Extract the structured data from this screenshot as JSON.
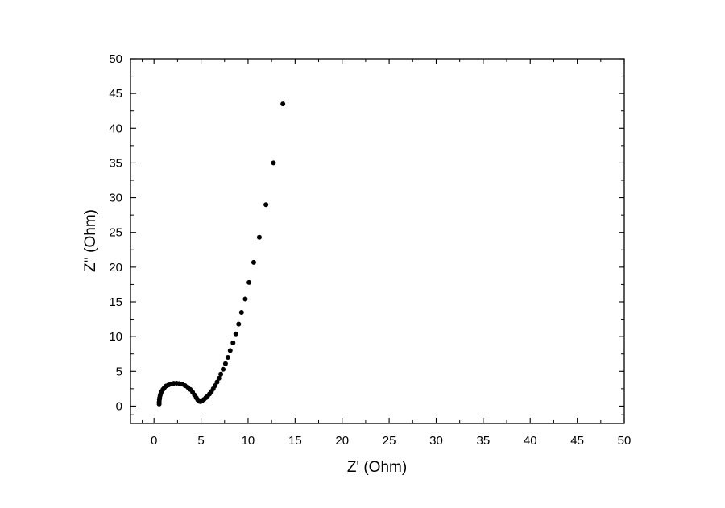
{
  "chart_data": {
    "type": "scatter",
    "title": "",
    "xlabel": "Z' (Ohm)",
    "ylabel": "Z'' (Ohm)",
    "xlim": [
      -2.5,
      50
    ],
    "ylim": [
      -2.5,
      50
    ],
    "xticks": [
      0,
      5,
      10,
      15,
      20,
      25,
      30,
      35,
      40,
      45,
      50
    ],
    "yticks": [
      0,
      5,
      10,
      15,
      20,
      25,
      30,
      35,
      40,
      45,
      50
    ],
    "grid": false,
    "legend": "none",
    "marker_color": "#000000",
    "series": [
      {
        "values": [
          [
            0.55,
            0.3
          ],
          [
            0.55,
            0.6
          ],
          [
            0.57,
            0.9
          ],
          [
            0.6,
            1.2
          ],
          [
            0.65,
            1.5
          ],
          [
            0.72,
            1.8
          ],
          [
            0.82,
            2.1
          ],
          [
            0.95,
            2.4
          ],
          [
            1.1,
            2.65
          ],
          [
            1.3,
            2.9
          ],
          [
            1.55,
            3.05
          ],
          [
            1.8,
            3.2
          ],
          [
            2.1,
            3.28
          ],
          [
            2.4,
            3.3
          ],
          [
            2.7,
            3.25
          ],
          [
            3.0,
            3.15
          ],
          [
            3.3,
            2.95
          ],
          [
            3.6,
            2.7
          ],
          [
            3.85,
            2.4
          ],
          [
            4.1,
            2.0
          ],
          [
            4.3,
            1.6
          ],
          [
            4.5,
            1.2
          ],
          [
            4.65,
            0.9
          ],
          [
            4.8,
            0.7
          ],
          [
            4.95,
            0.65
          ],
          [
            5.1,
            0.75
          ],
          [
            5.3,
            0.95
          ],
          [
            5.5,
            1.2
          ],
          [
            5.7,
            1.45
          ],
          [
            5.9,
            1.75
          ],
          [
            6.1,
            2.1
          ],
          [
            6.3,
            2.5
          ],
          [
            6.5,
            2.95
          ],
          [
            6.7,
            3.45
          ],
          [
            6.9,
            4.0
          ],
          [
            7.1,
            4.6
          ],
          [
            7.35,
            5.3
          ],
          [
            7.6,
            6.1
          ],
          [
            7.85,
            7.0
          ],
          [
            8.1,
            8.0
          ],
          [
            8.4,
            9.1
          ],
          [
            8.7,
            10.4
          ],
          [
            9.0,
            11.8
          ],
          [
            9.3,
            13.5
          ],
          [
            9.7,
            15.4
          ],
          [
            10.1,
            17.8
          ],
          [
            10.6,
            20.7
          ],
          [
            11.2,
            24.3
          ],
          [
            11.9,
            29.0
          ],
          [
            12.7,
            35.0
          ],
          [
            13.7,
            43.5
          ]
        ]
      }
    ]
  }
}
